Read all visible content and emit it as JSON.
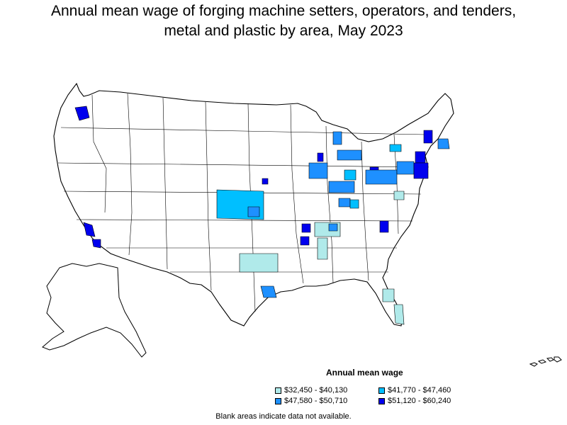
{
  "title": {
    "line1": "Annual mean wage of forging machine setters, operators, and tenders,",
    "line2": "metal and plastic by area, May 2023"
  },
  "legend": {
    "title": "Annual mean wage",
    "items": [
      {
        "label": "$32,450 - $40,130",
        "color": "#b0eaea"
      },
      {
        "label": "$41,770 - $47,460",
        "color": "#00bfff"
      },
      {
        "label": "$47,580 - $50,710",
        "color": "#1e90ff"
      },
      {
        "label": "$51,120 - $60,240",
        "color": "#0000ee"
      }
    ]
  },
  "note": "Blank areas indicate data not available."
}
